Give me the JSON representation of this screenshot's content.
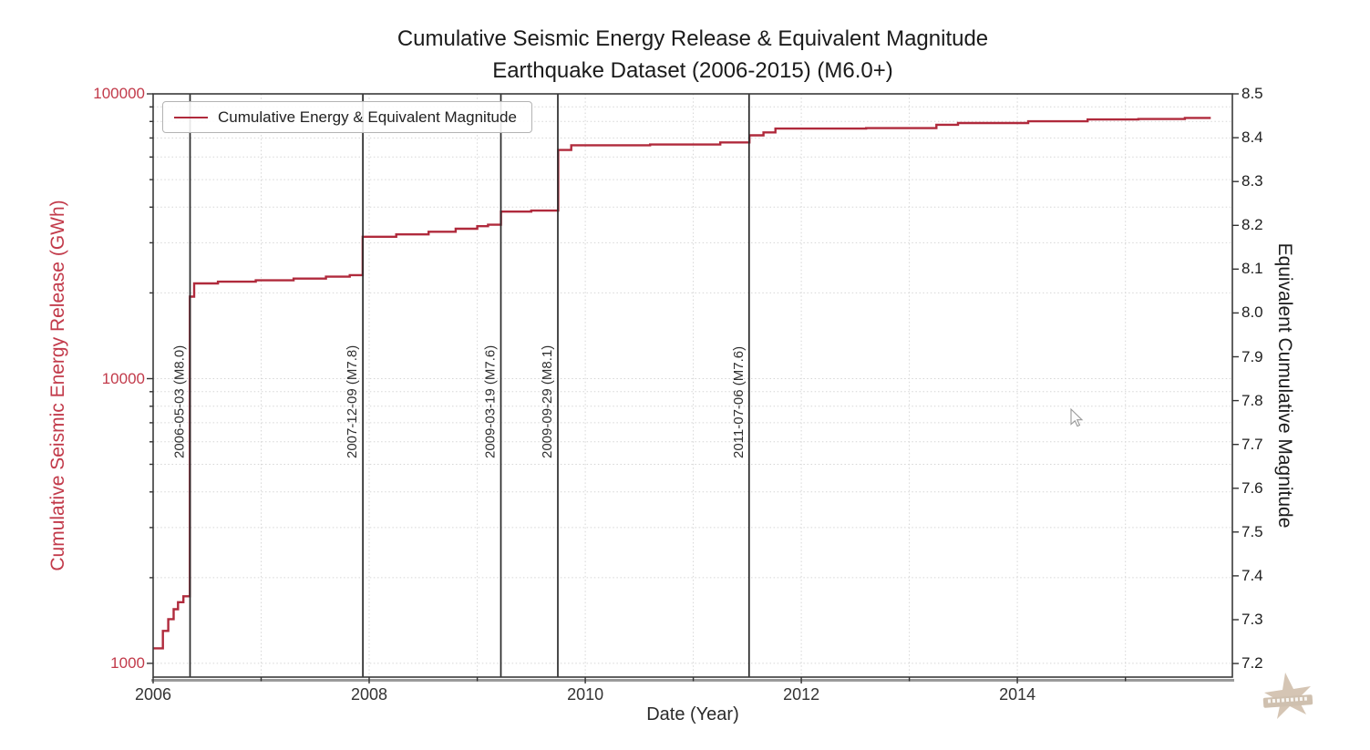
{
  "title": {
    "line1": "Cumulative Seismic Energy Release & Equivalent Magnitude",
    "line2": "Earthquake Dataset (2006-2015) (M6.0+)"
  },
  "legend": {
    "label": "Cumulative Energy & Equivalent Magnitude"
  },
  "axes": {
    "x": {
      "label": "Date (Year)",
      "range": [
        2006,
        2015.99
      ],
      "major_ticks": [
        2006,
        2008,
        2010,
        2012,
        2014
      ],
      "tick_labels": [
        "2006",
        "2008",
        "2010",
        "2012",
        "2014"
      ],
      "minor_ticks": [
        2007,
        2009,
        2011,
        2013,
        2015
      ]
    },
    "y_left": {
      "label": "Cumulative Seismic Energy Release (GWh)",
      "scale": "log",
      "range": [
        895,
        100000
      ],
      "major_values": [
        100000,
        10000,
        1000
      ],
      "tick_labels": [
        "100000",
        "10000",
        "1000"
      ]
    },
    "y_right": {
      "label": "Equivalent Cumulative Magnitude",
      "range": [
        7.169,
        8.5
      ],
      "tick_values": [
        8.5,
        8.4,
        8.3,
        8.2,
        8.1,
        8.0,
        7.9,
        7.8,
        7.7,
        7.6,
        7.5,
        7.4,
        7.3,
        7.2
      ],
      "tick_labels": [
        "8.5",
        "8.4",
        "8.3",
        "8.2",
        "8.1",
        "8.0",
        "7.9",
        "7.8",
        "7.7",
        "7.6",
        "7.5",
        "7.4",
        "7.3",
        "7.2"
      ]
    }
  },
  "chart_data": {
    "type": "line",
    "step": "post",
    "x_unit": "decimal_year",
    "title": "Cumulative Seismic Energy Release & Equivalent Magnitude - Earthquake Dataset (2006-2015) (M6.0+)",
    "grid": "dotted, both axes",
    "legend_position": "upper left",
    "series": [
      {
        "name": "Cumulative Energy & Equivalent Magnitude",
        "units": "GWh",
        "end_x": 2015.79,
        "points": [
          [
            2006.0,
            1130
          ],
          [
            2006.09,
            1300
          ],
          [
            2006.14,
            1430
          ],
          [
            2006.19,
            1550
          ],
          [
            2006.23,
            1640
          ],
          [
            2006.28,
            1720
          ],
          [
            2006.34,
            19400
          ],
          [
            2006.38,
            21600
          ],
          [
            2006.6,
            21900
          ],
          [
            2006.95,
            22150
          ],
          [
            2007.3,
            22450
          ],
          [
            2007.6,
            22800
          ],
          [
            2007.82,
            23100
          ],
          [
            2007.94,
            31500
          ],
          [
            2008.25,
            32100
          ],
          [
            2008.55,
            32800
          ],
          [
            2008.8,
            33600
          ],
          [
            2009.0,
            34300
          ],
          [
            2009.1,
            34700
          ],
          [
            2009.22,
            38600
          ],
          [
            2009.5,
            38900
          ],
          [
            2009.75,
            63500
          ],
          [
            2009.87,
            66000
          ],
          [
            2010.6,
            66400
          ],
          [
            2011.25,
            67500
          ],
          [
            2011.52,
            71500
          ],
          [
            2011.65,
            73200
          ],
          [
            2011.76,
            75500
          ],
          [
            2012.6,
            75800
          ],
          [
            2013.25,
            77900
          ],
          [
            2013.45,
            79000
          ],
          [
            2014.1,
            80100
          ],
          [
            2014.65,
            81300
          ],
          [
            2015.12,
            81600
          ],
          [
            2015.55,
            82300
          ]
        ]
      }
    ],
    "events": [
      {
        "date": "2006-05-03",
        "magnitude": 8.0,
        "label": "2006-05-03 (M8.0)"
      },
      {
        "date": "2007-12-09",
        "magnitude": 7.8,
        "label": "2007-12-09 (M7.8)"
      },
      {
        "date": "2009-03-19",
        "magnitude": 7.6,
        "label": "2009-03-19 (M7.6)"
      },
      {
        "date": "2009-09-29",
        "magnitude": 8.1,
        "label": "2009-09-29 (M8.1)"
      },
      {
        "date": "2011-07-06",
        "magnitude": 7.6,
        "label": "2011-07-06 (M7.6)"
      }
    ],
    "style": {
      "line_color": "#b02a3c",
      "left_label_color": "#c23a4a",
      "grid_color": "#d6d6d6",
      "event_line_color": "#2a2a2a",
      "watermark_color": "#b39677"
    }
  }
}
